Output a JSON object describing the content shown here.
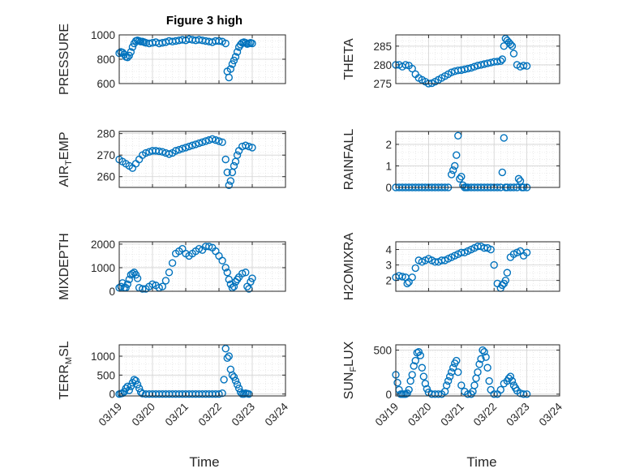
{
  "figure": {
    "title": "Figure 3 high",
    "xlabel": "Time"
  },
  "colors": {
    "marker": "#0072BD",
    "axis": "#262626",
    "grid": "#dcdcdc"
  },
  "x_ticks": [
    "03/19",
    "03/20",
    "03/21",
    "03/22",
    "03/23",
    "03/24"
  ],
  "chart_data": [
    {
      "type": "scatter",
      "name": "PRESSURE",
      "ylabel": "PRESSURE",
      "ylabel_parts": [
        "PRESSURE"
      ],
      "xlim": [
        0,
        5
      ],
      "ylim": [
        600,
        1000
      ],
      "yticks": [
        600,
        800,
        1000
      ],
      "x": [
        0.0,
        0.05,
        0.1,
        0.15,
        0.2,
        0.25,
        0.3,
        0.35,
        0.4,
        0.45,
        0.5,
        0.55,
        0.6,
        0.65,
        0.7,
        0.75,
        0.8,
        0.9,
        1.0,
        1.1,
        1.2,
        1.3,
        1.4,
        1.5,
        1.6,
        1.7,
        1.8,
        1.9,
        2.0,
        2.1,
        2.2,
        2.3,
        2.4,
        2.5,
        2.6,
        2.7,
        2.8,
        2.9,
        3.0,
        3.1,
        3.2,
        3.25,
        3.3,
        3.35,
        3.4,
        3.45,
        3.5,
        3.55,
        3.6,
        3.65,
        3.7,
        3.75,
        3.8,
        3.85,
        3.9,
        3.95,
        4.0
      ],
      "y": [
        850,
        860,
        855,
        840,
        820,
        815,
        830,
        860,
        900,
        930,
        950,
        955,
        950,
        945,
        945,
        940,
        935,
        930,
        935,
        940,
        930,
        935,
        940,
        950,
        945,
        950,
        955,
        960,
        955,
        965,
        960,
        955,
        960,
        955,
        950,
        945,
        940,
        950,
        950,
        945,
        930,
        700,
        650,
        720,
        760,
        790,
        820,
        860,
        900,
        920,
        935,
        940,
        935,
        925,
        930,
        935,
        930
      ]
    },
    {
      "type": "scatter",
      "name": "THETA",
      "ylabel": "THETA",
      "ylabel_parts": [
        "THETA"
      ],
      "xlim": [
        0,
        5
      ],
      "ylim": [
        275,
        288
      ],
      "yticks": [
        275,
        280,
        285
      ],
      "x": [
        0.0,
        0.1,
        0.2,
        0.3,
        0.4,
        0.5,
        0.6,
        0.7,
        0.8,
        0.9,
        1.0,
        1.1,
        1.2,
        1.3,
        1.4,
        1.5,
        1.6,
        1.7,
        1.8,
        1.9,
        2.0,
        2.1,
        2.2,
        2.3,
        2.4,
        2.5,
        2.6,
        2.7,
        2.8,
        2.9,
        3.0,
        3.1,
        3.2,
        3.25,
        3.3,
        3.35,
        3.4,
        3.45,
        3.5,
        3.55,
        3.6,
        3.7,
        3.8,
        3.9,
        4.0
      ],
      "y": [
        280,
        280,
        279.5,
        280,
        279.8,
        279,
        277.5,
        276.5,
        276,
        275.5,
        275,
        275.1,
        275.5,
        276,
        276.5,
        277,
        277.5,
        278,
        278.3,
        278.5,
        278.6,
        278.8,
        279,
        279.2,
        279.5,
        279.8,
        280,
        280.2,
        280.4,
        280.6,
        280.8,
        280.9,
        281,
        281.5,
        285,
        287,
        286.5,
        286,
        285.5,
        285,
        283,
        280,
        279.5,
        279.8,
        279.7
      ]
    },
    {
      "type": "scatter",
      "name": "AIR_TEMP",
      "ylabel": "AIR_TEMP",
      "ylabel_parts": [
        "AIR",
        "T",
        "EMP"
      ],
      "xlim": [
        0,
        5
      ],
      "ylim": [
        255,
        281
      ],
      "yticks": [
        260,
        270,
        280
      ],
      "x": [
        0.0,
        0.1,
        0.2,
        0.3,
        0.4,
        0.5,
        0.6,
        0.7,
        0.8,
        0.9,
        1.0,
        1.1,
        1.2,
        1.3,
        1.4,
        1.5,
        1.6,
        1.7,
        1.8,
        1.9,
        2.0,
        2.1,
        2.2,
        2.3,
        2.4,
        2.5,
        2.6,
        2.7,
        2.8,
        2.9,
        3.0,
        3.1,
        3.2,
        3.25,
        3.3,
        3.35,
        3.4,
        3.45,
        3.5,
        3.55,
        3.6,
        3.7,
        3.8,
        3.9,
        4.0
      ],
      "y": [
        268,
        267,
        266,
        265,
        264,
        266,
        268,
        270,
        271,
        271.5,
        272,
        272,
        271.8,
        271.5,
        271,
        270.5,
        271,
        272,
        272.5,
        273,
        273.5,
        274,
        274.5,
        275,
        275.5,
        276,
        276.5,
        277,
        277.5,
        277,
        276.5,
        276,
        268,
        262,
        256,
        258,
        262,
        265,
        267,
        270,
        272,
        274,
        274.5,
        274,
        273.5
      ]
    },
    {
      "type": "scatter",
      "name": "RAINFALL",
      "ylabel": "RAINFALL",
      "ylabel_parts": [
        "RAINFALL"
      ],
      "xlim": [
        0,
        5
      ],
      "ylim": [
        0,
        2.6
      ],
      "yticks": [
        0,
        1,
        2
      ],
      "x": [
        0.0,
        0.1,
        0.2,
        0.3,
        0.4,
        0.5,
        0.6,
        0.7,
        0.8,
        0.9,
        1.0,
        1.1,
        1.2,
        1.3,
        1.4,
        1.5,
        1.6,
        1.7,
        1.75,
        1.8,
        1.85,
        1.9,
        1.95,
        2.0,
        2.05,
        2.1,
        2.15,
        2.2,
        2.3,
        2.4,
        2.5,
        2.6,
        2.7,
        2.8,
        2.9,
        3.0,
        3.1,
        3.2,
        3.25,
        3.3,
        3.35,
        3.4,
        3.5,
        3.6,
        3.7,
        3.75,
        3.8,
        3.85,
        3.9,
        4.0
      ],
      "y": [
        0,
        0,
        0,
        0,
        0,
        0,
        0,
        0,
        0,
        0,
        0,
        0,
        0,
        0,
        0,
        0,
        0,
        0.6,
        0.8,
        1.0,
        1.5,
        2.4,
        0.4,
        0.5,
        0.1,
        0,
        0,
        0,
        0,
        0,
        0,
        0,
        0,
        0,
        0,
        0,
        0,
        0,
        0.7,
        2.3,
        0,
        0,
        0,
        0,
        0,
        0.4,
        0.3,
        0,
        0,
        0
      ]
    },
    {
      "type": "scatter",
      "name": "MIXDEPTH",
      "ylabel": "MIXDEPTH",
      "ylabel_parts": [
        "MIXDEPTH"
      ],
      "xlim": [
        0,
        5
      ],
      "ylim": [
        0,
        2100
      ],
      "yticks": [
        0,
        1000,
        2000
      ],
      "x": [
        0.0,
        0.05,
        0.1,
        0.15,
        0.2,
        0.25,
        0.3,
        0.35,
        0.4,
        0.45,
        0.5,
        0.55,
        0.6,
        0.7,
        0.8,
        0.9,
        1.0,
        1.1,
        1.2,
        1.3,
        1.4,
        1.5,
        1.6,
        1.7,
        1.8,
        1.9,
        2.0,
        2.1,
        2.2,
        2.3,
        2.4,
        2.5,
        2.6,
        2.7,
        2.8,
        2.9,
        3.0,
        3.1,
        3.2,
        3.25,
        3.3,
        3.35,
        3.4,
        3.45,
        3.5,
        3.55,
        3.6,
        3.7,
        3.8,
        3.85,
        3.9,
        3.95,
        4.0
      ],
      "y": [
        150,
        200,
        350,
        150,
        150,
        300,
        500,
        700,
        750,
        800,
        700,
        550,
        150,
        100,
        100,
        200,
        300,
        250,
        150,
        200,
        450,
        800,
        1200,
        1600,
        1700,
        1800,
        1600,
        1500,
        1600,
        1700,
        1800,
        1750,
        1900,
        1900,
        1850,
        1700,
        1500,
        1300,
        1000,
        800,
        500,
        300,
        150,
        200,
        400,
        500,
        600,
        750,
        800,
        200,
        100,
        400,
        550
      ]
    },
    {
      "type": "scatter",
      "name": "H2OMIXRA",
      "ylabel": "H2OMIXRA",
      "ylabel_parts": [
        "H2OMIXRA"
      ],
      "xlim": [
        0,
        5
      ],
      "ylim": [
        1.3,
        4.5
      ],
      "yticks": [
        2,
        3,
        4
      ],
      "x": [
        0.0,
        0.1,
        0.2,
        0.3,
        0.35,
        0.4,
        0.5,
        0.6,
        0.7,
        0.8,
        0.9,
        1.0,
        1.1,
        1.2,
        1.3,
        1.4,
        1.5,
        1.6,
        1.7,
        1.8,
        1.9,
        2.0,
        2.1,
        2.2,
        2.3,
        2.4,
        2.5,
        2.6,
        2.7,
        2.8,
        2.9,
        3.0,
        3.1,
        3.2,
        3.25,
        3.3,
        3.35,
        3.4,
        3.5,
        3.6,
        3.7,
        3.8,
        3.9,
        4.0
      ],
      "y": [
        2.2,
        2.3,
        2.25,
        2.2,
        1.8,
        1.9,
        2.2,
        2.8,
        3.3,
        3.2,
        3.3,
        3.4,
        3.3,
        3.2,
        3.2,
        3.3,
        3.3,
        3.4,
        3.5,
        3.6,
        3.7,
        3.8,
        3.8,
        3.9,
        4.0,
        4.1,
        4.2,
        4.2,
        4.1,
        4.1,
        4.0,
        3.0,
        1.8,
        1.5,
        1.7,
        1.8,
        2.0,
        2.5,
        3.5,
        3.7,
        3.8,
        3.9,
        3.6,
        3.8
      ]
    },
    {
      "type": "scatter",
      "name": "TERR_MSL",
      "ylabel": "TERR_MSL",
      "ylabel_parts": [
        "TERR",
        "M",
        "SL"
      ],
      "xlim": [
        0,
        5
      ],
      "ylim": [
        -50,
        1300
      ],
      "yticks": [
        0,
        500,
        1000
      ],
      "x": [
        0.0,
        0.05,
        0.1,
        0.15,
        0.2,
        0.25,
        0.3,
        0.35,
        0.4,
        0.45,
        0.5,
        0.55,
        0.6,
        0.65,
        0.7,
        0.8,
        0.9,
        1.0,
        1.1,
        1.2,
        1.3,
        1.4,
        1.5,
        1.6,
        1.7,
        1.8,
        1.9,
        2.0,
        2.1,
        2.2,
        2.3,
        2.4,
        2.5,
        2.6,
        2.7,
        2.8,
        2.9,
        3.0,
        3.1,
        3.15,
        3.2,
        3.25,
        3.3,
        3.35,
        3.4,
        3.45,
        3.5,
        3.55,
        3.6,
        3.65,
        3.7,
        3.75,
        3.8,
        3.85,
        3.9
      ],
      "y": [
        0,
        10,
        20,
        60,
        150,
        200,
        100,
        200,
        300,
        380,
        350,
        250,
        150,
        50,
        10,
        0,
        0,
        0,
        0,
        0,
        0,
        0,
        0,
        0,
        0,
        0,
        0,
        0,
        0,
        0,
        0,
        0,
        0,
        0,
        0,
        0,
        0,
        0,
        20,
        380,
        1200,
        950,
        1000,
        650,
        500,
        450,
        350,
        250,
        150,
        50,
        0,
        0,
        20,
        10,
        0
      ]
    },
    {
      "type": "scatter",
      "name": "SUN_FLUX",
      "ylabel": "SUN_FLUX",
      "ylabel_parts": [
        "SUN",
        "F",
        "LUX"
      ],
      "xlim": [
        0,
        5
      ],
      "ylim": [
        -20,
        560
      ],
      "yticks": [
        0,
        500
      ],
      "x": [
        0.0,
        0.05,
        0.1,
        0.15,
        0.2,
        0.25,
        0.3,
        0.35,
        0.4,
        0.45,
        0.5,
        0.55,
        0.6,
        0.65,
        0.7,
        0.75,
        0.8,
        0.85,
        0.9,
        0.95,
        1.0,
        1.1,
        1.2,
        1.3,
        1.4,
        1.5,
        1.55,
        1.6,
        1.65,
        1.7,
        1.75,
        1.8,
        1.85,
        1.9,
        2.0,
        2.1,
        2.2,
        2.3,
        2.35,
        2.4,
        2.45,
        2.5,
        2.55,
        2.6,
        2.65,
        2.7,
        2.75,
        2.8,
        2.85,
        2.9,
        3.0,
        3.1,
        3.2,
        3.3,
        3.4,
        3.45,
        3.5,
        3.55,
        3.6,
        3.65,
        3.7,
        3.8,
        3.9,
        4.0
      ],
      "y": [
        220,
        130,
        50,
        0,
        0,
        0,
        0,
        10,
        50,
        150,
        220,
        320,
        380,
        470,
        480,
        440,
        300,
        200,
        120,
        60,
        20,
        0,
        0,
        0,
        0,
        30,
        100,
        150,
        200,
        250,
        300,
        350,
        380,
        250,
        100,
        30,
        0,
        0,
        30,
        100,
        180,
        250,
        340,
        400,
        500,
        480,
        420,
        300,
        150,
        50,
        0,
        0,
        50,
        120,
        150,
        180,
        200,
        150,
        100,
        70,
        40,
        10,
        0,
        0
      ]
    }
  ]
}
